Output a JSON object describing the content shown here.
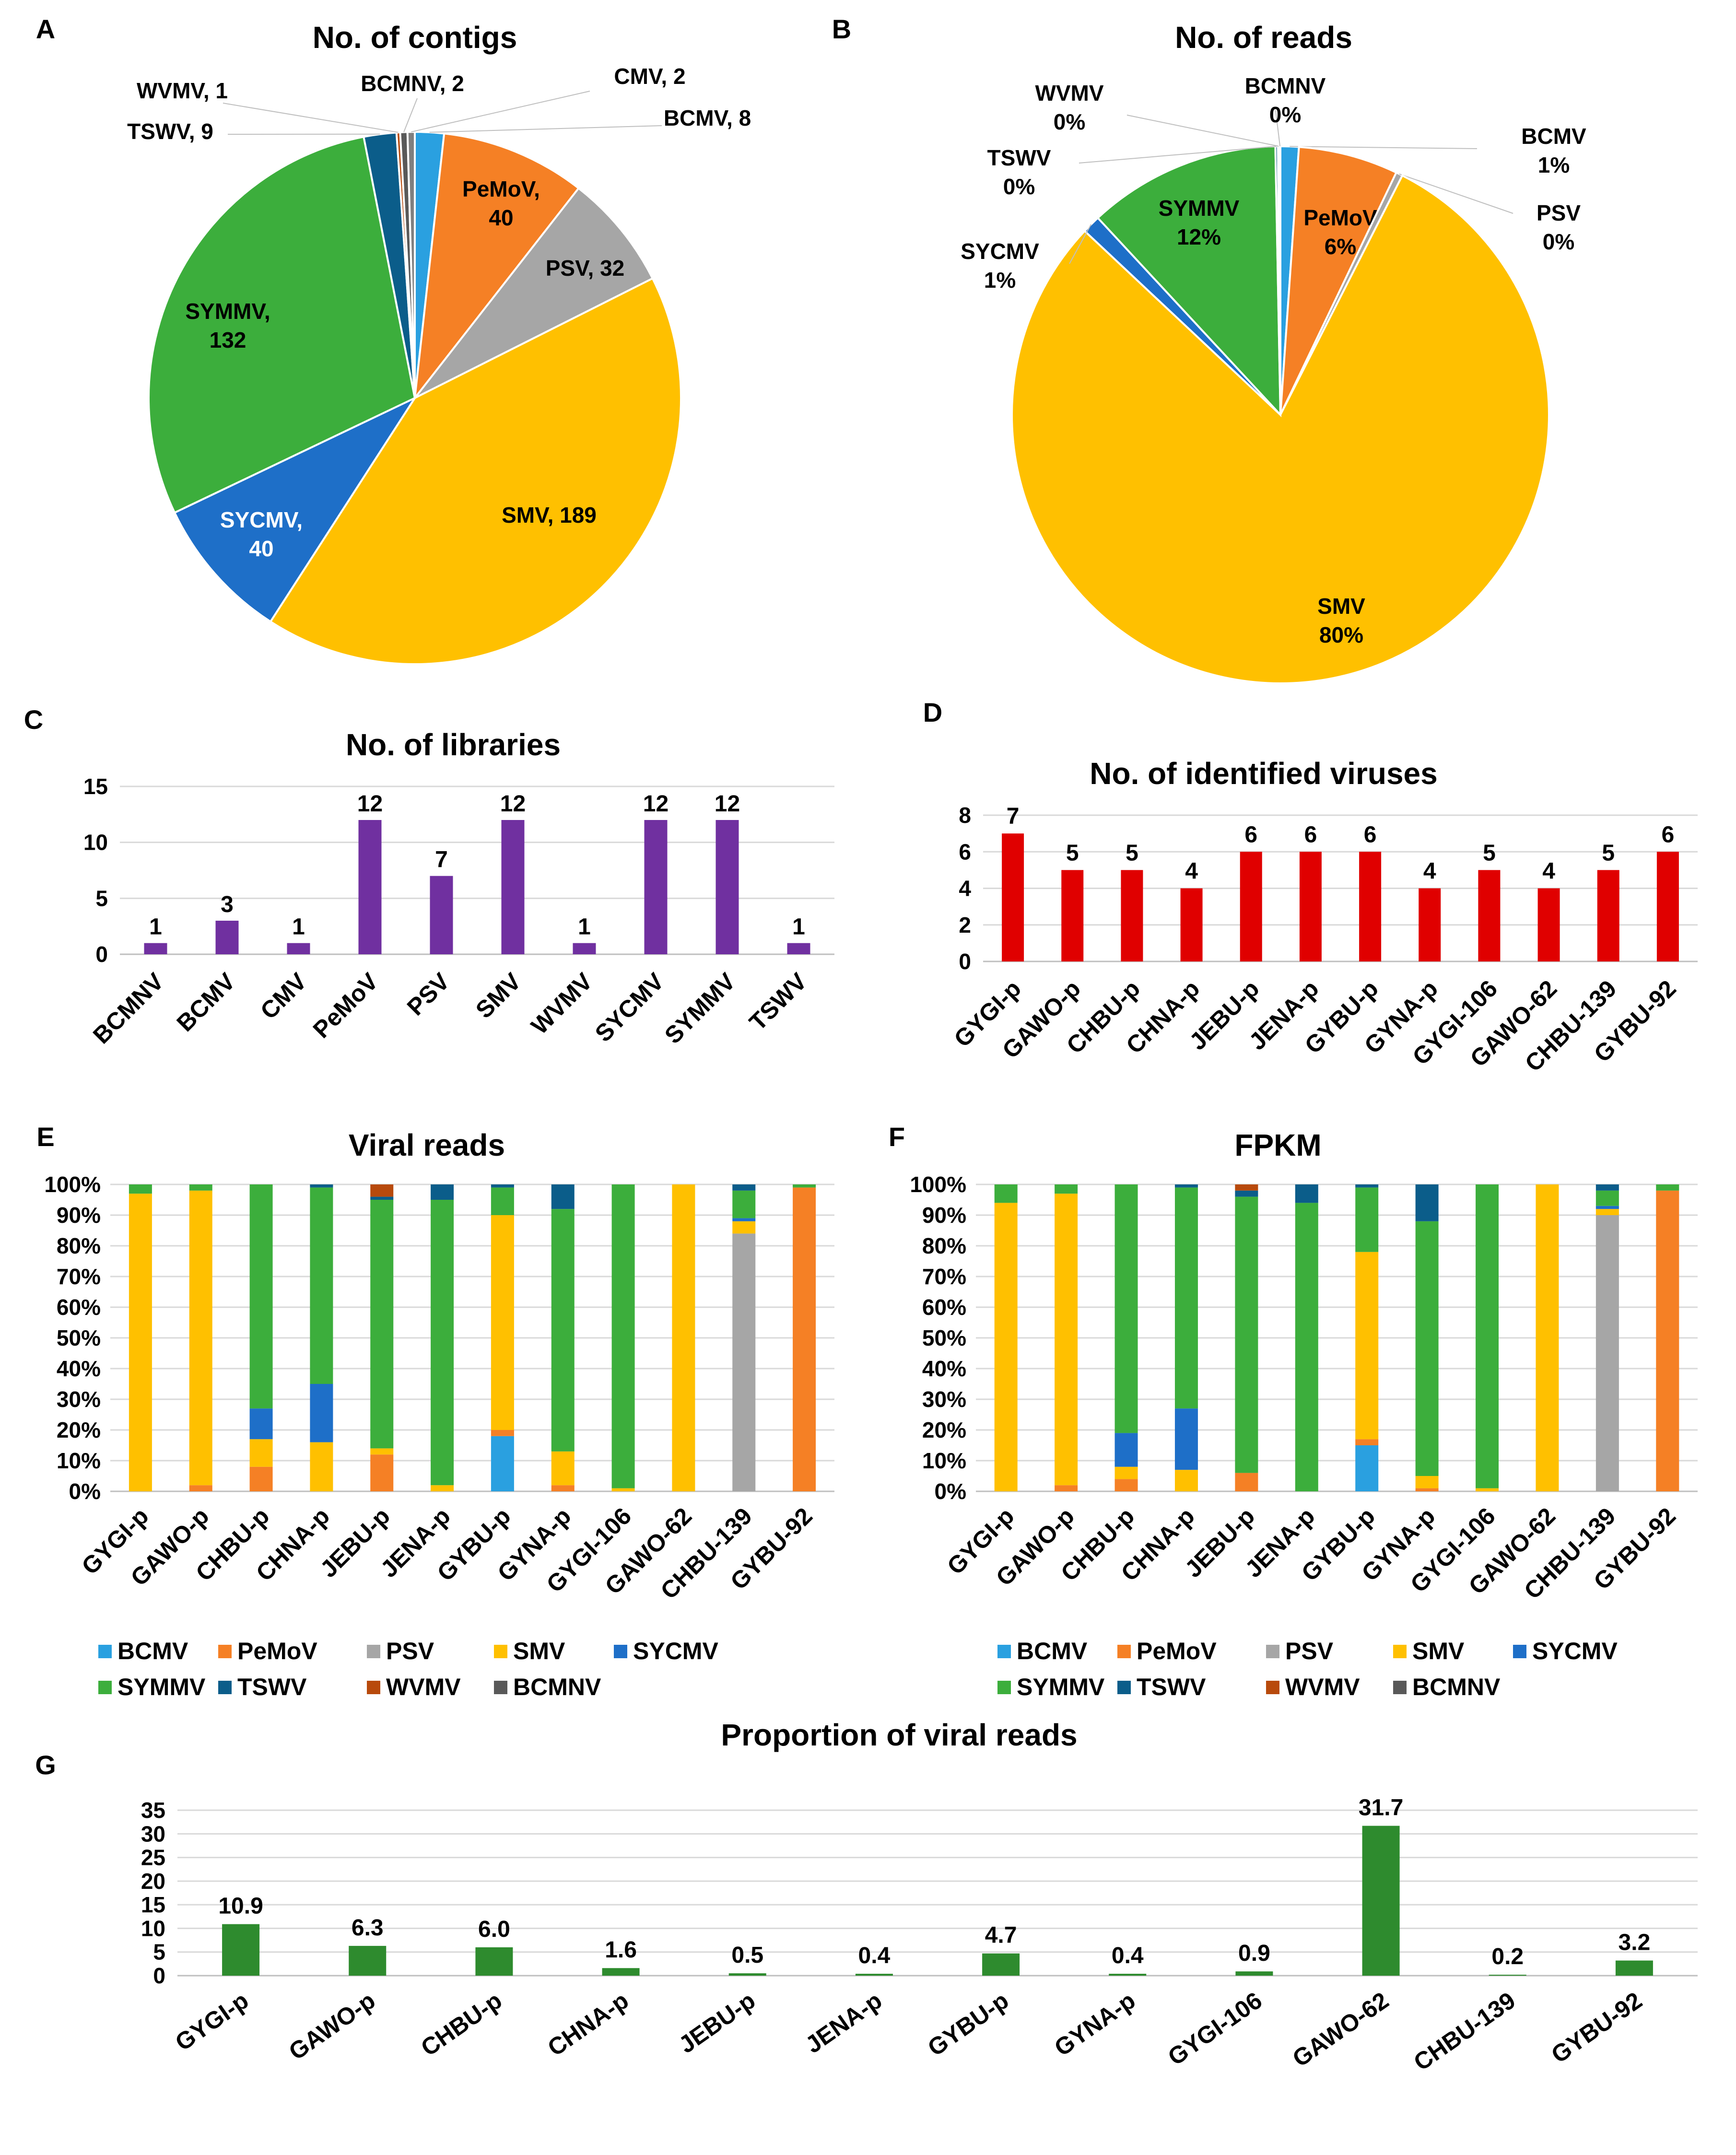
{
  "colors": {
    "BCMV": "#2aa0e0",
    "PeMoV": "#f58025",
    "PSV": "#a6a6a6",
    "SMV": "#ffc000",
    "SYCMV": "#1e6fc8",
    "SYMMV": "#3cae3c",
    "TSWV": "#0b5d8a",
    "WVMV": "#b84a0c",
    "BCMNV": "#595959",
    "purple": "#7030a0",
    "red": "#e00000",
    "green": "#2e8b2e"
  },
  "legend_labels": [
    "BCMV",
    "PeMoV",
    "PSV",
    "SMV",
    "SYCMV",
    "SYMMV",
    "TSWV",
    "WVMV",
    "BCMNV"
  ],
  "chart_data": [
    {
      "id": "A",
      "type": "pie",
      "title": "No. of contigs",
      "slices": [
        {
          "name": "BCMV",
          "value": 8,
          "label": "BCMV, 8"
        },
        {
          "name": "PeMoV",
          "value": 40,
          "label": "PeMoV,\n40"
        },
        {
          "name": "PSV",
          "value": 32,
          "label": "PSV, 32"
        },
        {
          "name": "SMV",
          "value": 189,
          "label": "SMV, 189"
        },
        {
          "name": "SYCMV",
          "value": 40,
          "label": "SYCMV,\n40"
        },
        {
          "name": "SYMMV",
          "value": 132,
          "label": "SYMMV,\n132"
        },
        {
          "name": "TSWV",
          "value": 9,
          "label": "TSWV, 9"
        },
        {
          "name": "WVMV",
          "value": 1,
          "label": "WVMV, 1"
        },
        {
          "name": "BCMNV",
          "value": 2,
          "label": "BCMNV, 2"
        },
        {
          "name": "CMV",
          "value": 2,
          "label": "CMV, 2"
        }
      ]
    },
    {
      "id": "B",
      "type": "pie",
      "title": "No. of reads",
      "slices": [
        {
          "name": "BCMV",
          "value": 1.1,
          "label": "BCMV\n1%"
        },
        {
          "name": "PeMoV",
          "value": 6,
          "label": "PeMoV\n6%"
        },
        {
          "name": "PSV",
          "value": 0.4,
          "label": "PSV\n0%"
        },
        {
          "name": "SMV",
          "value": 79.5,
          "label": "SMV\n80%"
        },
        {
          "name": "SYCMV",
          "value": 1.1,
          "label": "SYCMV\n1%"
        },
        {
          "name": "SYMMV",
          "value": 11.6,
          "label": "SYMMV\n12%"
        },
        {
          "name": "TSWV",
          "value": 0.15,
          "label": "TSWV\n0%"
        },
        {
          "name": "WVMV",
          "value": 0.1,
          "label": "WVMV\n0%"
        },
        {
          "name": "BCMNV",
          "value": 0.05,
          "label": "BCMNV\n0%"
        }
      ]
    },
    {
      "id": "C",
      "type": "bar",
      "title": "No. of libraries",
      "categories": [
        "BCMNV",
        "BCMV",
        "CMV",
        "PeMoV",
        "PSV",
        "SMV",
        "WVMV",
        "SYCMV",
        "SYMMV",
        "TSWV"
      ],
      "values": [
        1,
        3,
        1,
        12,
        7,
        12,
        1,
        12,
        12,
        1
      ],
      "ylim": [
        0,
        15
      ],
      "yticks": [
        0,
        5,
        10,
        15
      ]
    },
    {
      "id": "D",
      "type": "bar",
      "title": "No. of identified viruses",
      "categories": [
        "GYGI-p",
        "GAWO-p",
        "CHBU-p",
        "CHNA-p",
        "JEBU-p",
        "JENA-p",
        "GYBU-p",
        "GYNA-p",
        "GYGI-106",
        "GAWO-62",
        "CHBU-139",
        "GYBU-92"
      ],
      "values": [
        7,
        5,
        5,
        4,
        6,
        6,
        6,
        4,
        5,
        4,
        5,
        6
      ],
      "ylim": [
        0,
        8
      ],
      "yticks": [
        0,
        2,
        4,
        6,
        8
      ]
    },
    {
      "id": "E",
      "type": "bar",
      "stacked": true,
      "title": "Viral reads",
      "categories": [
        "GYGI-p",
        "GAWO-p",
        "CHBU-p",
        "CHNA-p",
        "JEBU-p",
        "JENA-p",
        "GYBU-p",
        "GYNA-p",
        "GYGI-106",
        "GAWO-62",
        "CHBU-139",
        "GYBU-92"
      ],
      "yticks": [
        "0%",
        "10%",
        "20%",
        "30%",
        "40%",
        "50%",
        "60%",
        "70%",
        "80%",
        "90%",
        "100%"
      ],
      "series": [
        {
          "name": "BCMV",
          "values": [
            0,
            0,
            0,
            0,
            0,
            0,
            18,
            0,
            0,
            0,
            0,
            0
          ]
        },
        {
          "name": "PeMoV",
          "values": [
            0,
            2,
            8,
            0,
            12,
            0,
            2,
            2,
            0,
            0,
            0,
            99
          ]
        },
        {
          "name": "PSV",
          "values": [
            0,
            0,
            0,
            0,
            0,
            0,
            0,
            0,
            0,
            0,
            84,
            0
          ]
        },
        {
          "name": "SMV",
          "values": [
            97,
            96,
            9,
            16,
            2,
            2,
            70,
            11,
            1,
            100,
            4,
            0
          ]
        },
        {
          "name": "SYCMV",
          "values": [
            0,
            0,
            10,
            19,
            0,
            0,
            0,
            0,
            0,
            0,
            1,
            0
          ]
        },
        {
          "name": "SYMMV",
          "values": [
            3,
            2,
            73,
            64,
            81,
            93,
            9,
            79,
            99,
            0,
            9,
            1
          ]
        },
        {
          "name": "TSWV",
          "values": [
            0,
            0,
            0,
            1,
            1,
            5,
            1,
            8,
            0,
            0,
            2,
            0
          ]
        },
        {
          "name": "WVMV",
          "values": [
            0,
            0,
            0,
            0,
            4,
            0,
            0,
            0,
            0,
            0,
            0,
            0
          ]
        },
        {
          "name": "BCMNV",
          "values": [
            0,
            0,
            0,
            0,
            0,
            0,
            0,
            0,
            0,
            0,
            0,
            0
          ]
        }
      ]
    },
    {
      "id": "F",
      "type": "bar",
      "stacked": true,
      "title": "FPKM",
      "categories": [
        "GYGI-p",
        "GAWO-p",
        "CHBU-p",
        "CHNA-p",
        "JEBU-p",
        "JENA-p",
        "GYBU-p",
        "GYNA-p",
        "GYGI-106",
        "GAWO-62",
        "CHBU-139",
        "GYBU-92"
      ],
      "yticks": [
        "0%",
        "10%",
        "20%",
        "30%",
        "40%",
        "50%",
        "60%",
        "70%",
        "80%",
        "90%",
        "100%"
      ],
      "series": [
        {
          "name": "BCMV",
          "values": [
            0,
            0,
            0,
            0,
            0,
            0,
            15,
            0,
            0,
            0,
            0,
            0
          ]
        },
        {
          "name": "PeMoV",
          "values": [
            0,
            2,
            4,
            0,
            6,
            0,
            2,
            1,
            0,
            0,
            0,
            98
          ]
        },
        {
          "name": "PSV",
          "values": [
            0,
            0,
            0,
            0,
            0,
            0,
            0,
            0,
            0,
            0,
            90,
            0
          ]
        },
        {
          "name": "SMV",
          "values": [
            94,
            95,
            4,
            7,
            0,
            0,
            61,
            4,
            1,
            100,
            2,
            0
          ]
        },
        {
          "name": "SYCMV",
          "values": [
            0,
            0,
            11,
            20,
            0,
            0,
            0,
            0,
            0,
            0,
            1,
            0
          ]
        },
        {
          "name": "SYMMV",
          "values": [
            6,
            3,
            81,
            72,
            90,
            94,
            21,
            83,
            99,
            0,
            5,
            2
          ]
        },
        {
          "name": "TSWV",
          "values": [
            0,
            0,
            0,
            1,
            2,
            6,
            1,
            12,
            0,
            0,
            2,
            0
          ]
        },
        {
          "name": "WVMV",
          "values": [
            0,
            0,
            0,
            0,
            2,
            0,
            0,
            0,
            0,
            0,
            0,
            0
          ]
        },
        {
          "name": "BCMNV",
          "values": [
            0,
            0,
            0,
            0,
            0,
            0,
            0,
            0,
            0,
            0,
            0,
            0
          ]
        }
      ]
    },
    {
      "id": "G",
      "type": "bar",
      "title": "Proportion of viral reads",
      "categories": [
        "GYGI-p",
        "GAWO-p",
        "CHBU-p",
        "CHNA-p",
        "JEBU-p",
        "JENA-p",
        "GYBU-p",
        "GYNA-p",
        "GYGI-106",
        "GAWO-62",
        "CHBU-139",
        "GYBU-92"
      ],
      "values": [
        10.9,
        6.3,
        6.0,
        1.6,
        0.5,
        0.4,
        4.7,
        0.4,
        0.9,
        31.7,
        0.2,
        3.2
      ],
      "value_labels": [
        "10.9",
        "6.3",
        "6.0",
        "1.6",
        "0.5",
        "0.4",
        "4.7",
        "0.4",
        "0.9",
        "31.7",
        "0.2",
        "3.2"
      ],
      "ylim": [
        0,
        35
      ],
      "yticks": [
        0,
        5,
        10,
        15,
        20,
        25,
        30,
        35
      ]
    }
  ]
}
